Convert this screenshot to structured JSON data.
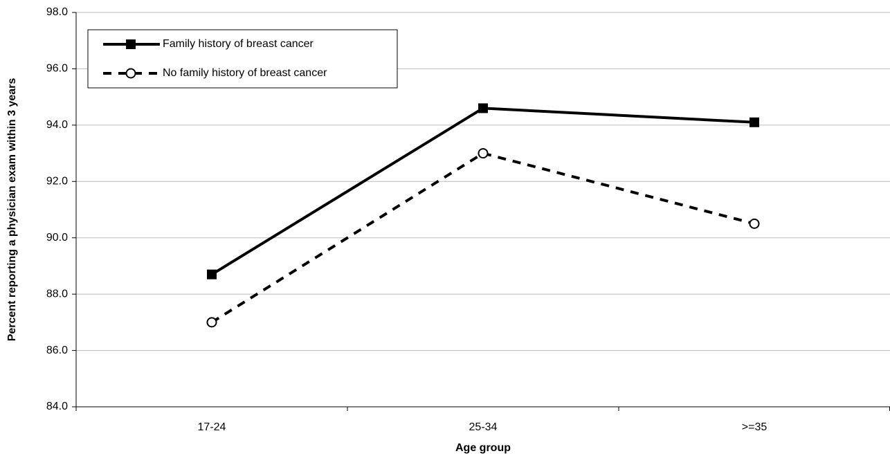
{
  "chart_data": {
    "type": "line",
    "x_label": "Age group",
    "y_label": "Percent reporting a physician exam within 3 years",
    "categories": [
      "17-24",
      "25-34",
      ">=35"
    ],
    "series": [
      {
        "name": "Family history of breast cancer",
        "color": "#000000",
        "line_style": "solid",
        "marker": "square",
        "values": [
          88.7,
          94.6,
          94.1
        ]
      },
      {
        "name": "No family history of breast cancer",
        "color": "#000000",
        "line_style": "dashed",
        "marker": "circle",
        "values": [
          87.0,
          93.0,
          90.5
        ]
      }
    ],
    "ylim": [
      84,
      98
    ],
    "yticks": [
      {
        "value": 84,
        "label": "84.0"
      },
      {
        "value": 86,
        "label": "86.0"
      },
      {
        "value": 88,
        "label": "88.0"
      },
      {
        "value": 90,
        "label": "90.0"
      },
      {
        "value": 92,
        "label": "92.0"
      },
      {
        "value": 94,
        "label": "94.0"
      },
      {
        "value": 96,
        "label": "96.0"
      },
      {
        "value": 98,
        "label": "98.0"
      }
    ],
    "grid": true,
    "legend": "upper left"
  }
}
